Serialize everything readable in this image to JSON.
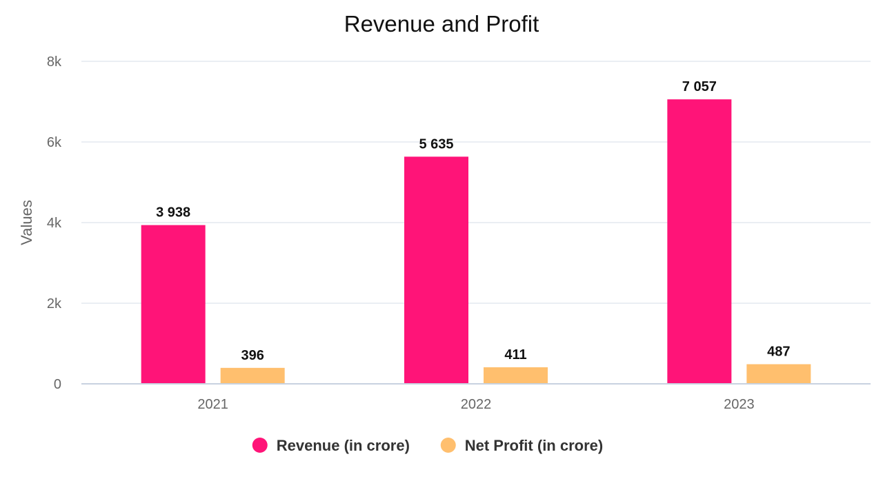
{
  "chart_data": {
    "type": "bar",
    "title": "Revenue and Profit",
    "xlabel": "",
    "ylabel": "Values",
    "categories": [
      "2021",
      "2022",
      "2023"
    ],
    "ylim": [
      0,
      8000
    ],
    "yticks": [
      0,
      2000,
      4000,
      6000,
      8000
    ],
    "ytick_labels": [
      "0",
      "2k",
      "4k",
      "6k",
      "8k"
    ],
    "grid": true,
    "legend_position": "bottom",
    "series": [
      {
        "name": "Revenue (in crore)",
        "color": "#ff1478",
        "values": [
          3938,
          5635,
          7057
        ],
        "labels": [
          "3 938",
          "5 635",
          "7 057"
        ]
      },
      {
        "name": "Net Profit (in crore)",
        "color": "#ffbf6e",
        "values": [
          396,
          411,
          487
        ],
        "labels": [
          "396",
          "411",
          "487"
        ]
      }
    ]
  }
}
